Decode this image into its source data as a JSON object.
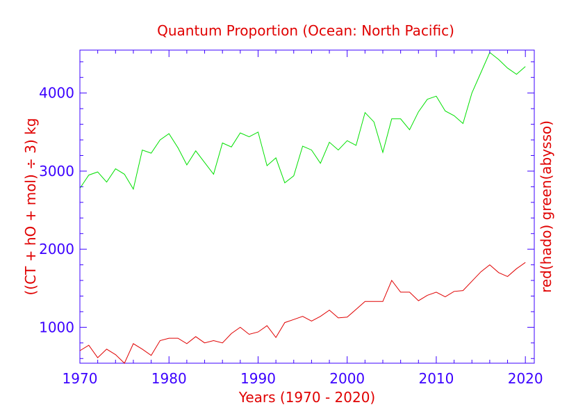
{
  "chart_data": {
    "type": "line",
    "title": "Quantum Proportion (Ocean: North Pacific)",
    "xlabel": "Years (1970 - 2020)",
    "ylabel": "((CT + hO + mol) ÷ 3) kg",
    "ylabel_right": "red(hado) green(abysso)",
    "xlim": [
      1970,
      2021
    ],
    "ylim": [
      540,
      4550
    ],
    "x_ticks": [
      1970,
      1980,
      1990,
      2000,
      2010,
      2020
    ],
    "y_ticks": [
      1000,
      2000,
      3000,
      4000
    ],
    "grid": false,
    "x": [
      1970,
      1971,
      1972,
      1973,
      1974,
      1975,
      1976,
      1977,
      1978,
      1979,
      1980,
      1981,
      1982,
      1983,
      1984,
      1985,
      1986,
      1987,
      1988,
      1989,
      1990,
      1991,
      1992,
      1993,
      1994,
      1995,
      1996,
      1997,
      1998,
      1999,
      2000,
      2001,
      2002,
      2003,
      2004,
      2005,
      2006,
      2007,
      2008,
      2009,
      2010,
      2011,
      2012,
      2013,
      2014,
      2015,
      2016,
      2017,
      2018,
      2019,
      2020
    ],
    "series": [
      {
        "color": "#00e000",
        "values": [
          2780,
          2950,
          2990,
          2860,
          3030,
          2960,
          2770,
          3270,
          3230,
          3400,
          3480,
          3300,
          3080,
          3260,
          3110,
          2960,
          3360,
          3310,
          3490,
          3440,
          3500,
          3070,
          3170,
          2850,
          2940,
          3320,
          3270,
          3100,
          3370,
          3270,
          3390,
          3330,
          3750,
          3630,
          3240,
          3670,
          3670,
          3530,
          3760,
          3920,
          3960,
          3770,
          3710,
          3610,
          4000,
          4260,
          4520,
          4430,
          4320,
          4240,
          4340
        ]
      },
      {
        "color": "#e00000",
        "values": [
          700,
          770,
          610,
          720,
          650,
          540,
          790,
          720,
          640,
          830,
          860,
          860,
          790,
          880,
          800,
          830,
          800,
          920,
          1000,
          910,
          940,
          1020,
          870,
          1060,
          1100,
          1140,
          1080,
          1140,
          1220,
          1120,
          1130,
          1230,
          1330,
          1330,
          1330,
          1600,
          1450,
          1450,
          1340,
          1410,
          1450,
          1390,
          1460,
          1470,
          1590,
          1710,
          1800,
          1700,
          1650,
          1750,
          1830
        ]
      }
    ]
  }
}
